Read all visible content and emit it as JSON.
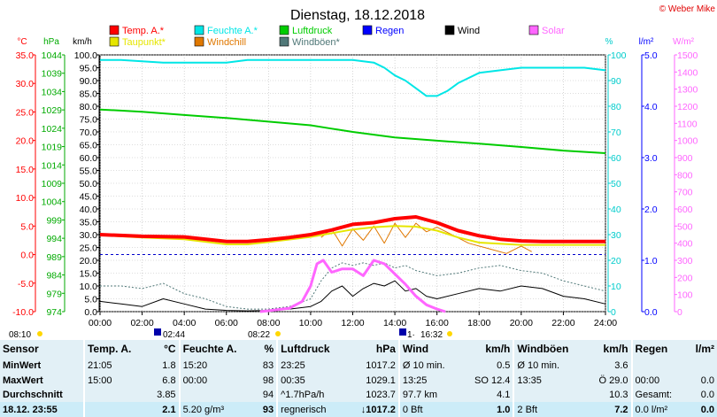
{
  "title": "Dienstag, 18.12.2018",
  "copyright": "© Weber Mike",
  "colors": {
    "temp": "#ff0000",
    "feuchte": "#00e6e6",
    "luftdruck": "#00cc00",
    "regen": "#0000ff",
    "wind": "#000000",
    "solar": "#ff66ff",
    "taupunkt": "#e6e600",
    "windchill": "#e07800",
    "windboeen": "#507878"
  },
  "legend": [
    {
      "label": "Temp. A.*",
      "color": "#ff0000"
    },
    {
      "label": "Feuchte A.*",
      "color": "#00e6e6"
    },
    {
      "label": "Luftdruck",
      "color": "#00cc00"
    },
    {
      "label": "Regen",
      "color": "#0000ff"
    },
    {
      "label": "Wind",
      "color": "#000000"
    },
    {
      "label": "Solar",
      "color": "#ff66ff"
    },
    {
      "label": "Taupunkt*",
      "color": "#e6e600"
    },
    {
      "label": "Windchill",
      "color": "#e07800"
    },
    {
      "label": "Windböen*",
      "color": "#507878"
    }
  ],
  "axis_units": {
    "temp": "°C",
    "press": "hPa",
    "wind": "km/h",
    "hum": "%",
    "rain": "l/m²",
    "solar": "W/m²"
  },
  "chart_data": {
    "type": "line",
    "x_ticks": [
      "00:00",
      "02:00",
      "04:00",
      "06:00",
      "08:00",
      "10:00",
      "12:00",
      "14:00",
      "16:00",
      "18:00",
      "20:00",
      "22:00",
      "24:00"
    ],
    "axes": {
      "temp": {
        "ticks": [
          "35.0",
          "30.0",
          "25.0",
          "20.0",
          "15.0",
          "10.0",
          "5.0",
          "0.0",
          "-5.0",
          "-10.0"
        ]
      },
      "press": {
        "ticks": [
          "1044",
          "1039",
          "1034",
          "1029",
          "1024",
          "1019",
          "1014",
          "1009",
          "1004",
          "999",
          "994",
          "989",
          "984",
          "979",
          "974"
        ]
      },
      "wind": {
        "ticks": [
          "100.0",
          "95.0",
          "90.0",
          "85.0",
          "80.0",
          "75.0",
          "70.0",
          "65.0",
          "60.0",
          "55.0",
          "50.0",
          "45.0",
          "40.0",
          "35.0",
          "30.0",
          "25.0",
          "20.0",
          "15.0",
          "10.0",
          "5.0",
          "0.0"
        ]
      },
      "hum": {
        "ticks": [
          "100",
          "90",
          "80",
          "70",
          "60",
          "50",
          "40",
          "30",
          "20",
          "10",
          "0"
        ]
      },
      "rain": {
        "ticks": [
          "5.0",
          "4.0",
          "3.0",
          "2.0",
          "1.0",
          "0.0"
        ]
      },
      "solar": {
        "ticks": [
          "1500",
          "1400",
          "1300",
          "1200",
          "1100",
          "1000",
          "900",
          "800",
          "700",
          "600",
          "500",
          "400",
          "300",
          "200",
          "100",
          "0"
        ]
      }
    },
    "series": [
      {
        "name": "Temp. A.*",
        "axis": "temp",
        "hours": [
          0,
          2,
          4,
          6,
          7,
          8,
          9,
          10,
          11,
          12,
          13,
          14,
          15,
          16,
          17,
          18,
          19,
          20,
          21,
          22,
          24
        ],
        "values": [
          3.5,
          3.2,
          3.1,
          2.3,
          2.3,
          2.6,
          3.0,
          3.5,
          4.3,
          5.3,
          5.6,
          6.3,
          6.6,
          5.6,
          4.2,
          3.3,
          2.7,
          2.4,
          2.3,
          2.3,
          2.3
        ]
      },
      {
        "name": "Taupunkt*",
        "axis": "temp",
        "hours": [
          0,
          2,
          4,
          6,
          7,
          8,
          10,
          12,
          13,
          14,
          15,
          16,
          17,
          18,
          20,
          22,
          24
        ],
        "values": [
          3.4,
          3.0,
          2.7,
          1.8,
          1.8,
          2.2,
          3.1,
          4.4,
          4.8,
          5.0,
          4.9,
          4.2,
          3.0,
          2.1,
          1.7,
          1.7,
          1.7
        ]
      },
      {
        "name": "Windchill",
        "axis": "temp",
        "hours": [
          10.5,
          11,
          11.5,
          12,
          12.5,
          13,
          13.5,
          14,
          14.5,
          15,
          15.5,
          16,
          17.5,
          18.5,
          19.3,
          20,
          20.5
        ],
        "values": [
          3.0,
          4.5,
          1.5,
          4.5,
          2.5,
          5.0,
          2.0,
          5.5,
          3.0,
          5.5,
          4.0,
          4.8,
          2.0,
          1.0,
          0.2,
          1.5,
          0.5
        ]
      },
      {
        "name": "Feuchte A.*",
        "axis": "hum",
        "hours": [
          0,
          1,
          3,
          4,
          6,
          7,
          9,
          10,
          11,
          12,
          13,
          13.5,
          14,
          14.5,
          15,
          15.5,
          16,
          16.5,
          17,
          18,
          19,
          20,
          21,
          22,
          23,
          24
        ],
        "values": [
          98,
          98,
          97,
          97,
          97,
          98,
          98,
          98,
          98,
          98,
          97,
          95,
          92,
          90,
          87,
          84,
          84,
          86,
          89,
          93,
          94,
          95,
          95,
          95,
          95,
          94
        ]
      },
      {
        "name": "Luftdruck",
        "axis": "press",
        "hours": [
          0,
          2,
          4,
          6,
          8,
          10,
          11,
          12,
          14,
          16,
          18,
          20,
          22,
          24
        ],
        "values": [
          1029.1,
          1028.5,
          1027.6,
          1026.8,
          1025.8,
          1024.8,
          1023.9,
          1023.0,
          1021.5,
          1020.6,
          1019.8,
          1018.9,
          1017.9,
          1017.2
        ]
      },
      {
        "name": "Wind",
        "axis": "wind",
        "hours": [
          0,
          1,
          2,
          3,
          4,
          5,
          6,
          7,
          8,
          9,
          10,
          10.5,
          11,
          11.5,
          12,
          12.5,
          13,
          13.5,
          14,
          14.5,
          15,
          15.5,
          16,
          17,
          18,
          19,
          20,
          21,
          22,
          23,
          24
        ],
        "values": [
          4,
          3,
          2,
          5,
          3,
          1,
          0.5,
          0.3,
          0.5,
          1,
          2,
          4,
          8,
          10,
          6,
          9,
          11,
          10,
          12,
          8,
          9,
          6,
          5,
          7,
          9,
          8,
          10,
          9,
          6,
          5,
          3
        ]
      },
      {
        "name": "Windböen*",
        "axis": "wind",
        "hours": [
          0,
          1,
          2,
          3,
          4,
          5,
          6,
          7,
          8,
          9,
          10,
          10.5,
          11,
          11.5,
          12,
          12.5,
          13,
          13.5,
          14,
          14.5,
          15,
          16,
          17,
          18,
          19,
          20,
          21,
          22,
          23,
          24
        ],
        "values": [
          10,
          10,
          9,
          11,
          7,
          5,
          2,
          1,
          1,
          2,
          5,
          12,
          17,
          19,
          18,
          19,
          18,
          19,
          17,
          18,
          16,
          14,
          15,
          17,
          18,
          16,
          15,
          12,
          10,
          8
        ]
      },
      {
        "name": "Solar",
        "axis": "solar",
        "hours": [
          7.6,
          8,
          9,
          9.6,
          10,
          10.3,
          10.6,
          11,
          11.5,
          12,
          12.5,
          13,
          13.5,
          14,
          14.5,
          15,
          15.5,
          16,
          16.4
        ],
        "values": [
          0,
          5,
          20,
          60,
          150,
          280,
          300,
          230,
          250,
          250,
          210,
          300,
          280,
          220,
          160,
          90,
          40,
          15,
          0
        ]
      }
    ],
    "zero_line_temp": 0.0,
    "ylim_temp": [
      -10,
      35
    ]
  },
  "sun_times": {
    "sunrise": "08:10",
    "sunset": "16:32",
    "moon_set": "02:44",
    "moon_rise": "08:22",
    "moon_phase": "1·"
  },
  "table": {
    "headers": [
      "Sensor",
      "Temp. A.",
      "°C",
      "Feuchte A.",
      "%",
      "Luftdruck",
      "hPa",
      "Wind",
      "km/h",
      "Windböen",
      "km/h",
      "Regen",
      "l/m²"
    ],
    "rows": [
      [
        "MinWert",
        "21:05",
        "1.8",
        "15:20",
        "83",
        "23:25",
        "1017.2",
        "Ø 10 min.",
        "0.5",
        "Ø 10 min.",
        "3.6",
        "",
        ""
      ],
      [
        "MaxWert",
        "15:00",
        "6.8",
        "00:00",
        "98",
        "00:35",
        "1029.1",
        "13:25",
        "SO 12.4",
        "13:35",
        "Ö 29.0",
        "00:00",
        "0.0"
      ],
      [
        "Durchschnitt",
        "",
        "3.85",
        "",
        "94",
        "^1.7hPa/h",
        "1023.7",
        "97.7 km",
        "4.1",
        "",
        "10.3",
        "Gesamt:",
        "0.0"
      ],
      [
        "18.12. 23:55",
        "",
        "2.1",
        "5.20 g/m³",
        "93",
        "regnerisch",
        "↓1017.2",
        "0 Bft",
        "1.0",
        "2 Bft",
        "7.2",
        "0.0 l/m²",
        "0.0"
      ]
    ]
  }
}
